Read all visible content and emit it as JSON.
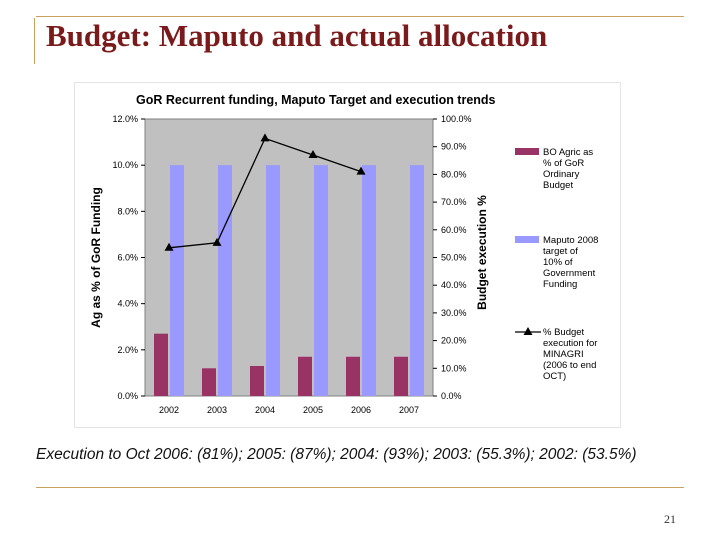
{
  "slide": {
    "title": "Budget: Maputo and actual allocation",
    "caption": "Execution to Oct 2006: (81%); 2005: (87%); 2004: (93%); 2003: (55.3%); 2002: (53.5%)",
    "page_number": "21"
  },
  "chart_data": {
    "type": "bar",
    "title": "GoR Recurrent funding, Maputo Target and execution trends",
    "categories": [
      "2002",
      "2003",
      "2004",
      "2005",
      "2006",
      "2007"
    ],
    "ylabel": "Ag as % of GoR Funding",
    "ylabel_right": "Budget execution %",
    "ylim": [
      0,
      12
    ],
    "ylim_right": [
      0,
      100
    ],
    "yticks": [
      "0.0%",
      "2.0%",
      "4.0%",
      "6.0%",
      "8.0%",
      "10.0%",
      "12.0%"
    ],
    "yticks_right": [
      "0.0%",
      "10.0%",
      "20.0%",
      "30.0%",
      "40.0%",
      "50.0%",
      "60.0%",
      "70.0%",
      "80.0%",
      "90.0%",
      "100.0%"
    ],
    "legend_position": "right",
    "series": [
      {
        "name": "BO Agric as % of GoR Ordinary Budget",
        "type": "bar",
        "axis": "left",
        "color": "#993366",
        "values": [
          2.7,
          1.2,
          1.3,
          1.7,
          1.7,
          1.7
        ]
      },
      {
        "name": "Maputo 2008 target of 10% of Government Funding",
        "type": "bar",
        "axis": "left",
        "color": "#9999ff",
        "values": [
          10,
          10,
          10,
          10,
          10,
          10
        ]
      },
      {
        "name": "% Budget execution for MINAGRI (2006 to end OCT)",
        "type": "line",
        "axis": "right",
        "color": "#000000",
        "values": [
          53.5,
          55.3,
          93,
          87,
          81,
          null
        ]
      }
    ],
    "legend_lines": [
      [
        "BO Agric as",
        "% of GoR",
        "Ordinary",
        "Budget"
      ],
      [
        "Maputo 2008",
        "target of",
        "10% of",
        "Government",
        "Funding"
      ],
      [
        "% Budget",
        "execution for",
        "MINAGRI",
        "(2006 to end",
        "OCT)"
      ]
    ]
  }
}
